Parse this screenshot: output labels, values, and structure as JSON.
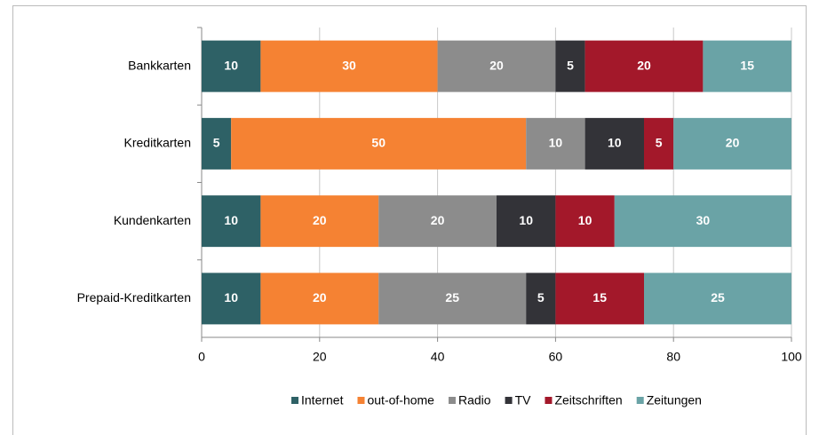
{
  "chart_data": {
    "type": "stacked_barh",
    "categories": [
      "Bankkarten",
      "Kreditkarten",
      "Kundenkarten",
      "Prepaid-Kreditkarten"
    ],
    "series": [
      {
        "name": "Internet",
        "color": "#2e6166",
        "values": [
          10,
          5,
          10,
          10
        ]
      },
      {
        "name": "out-of-home",
        "color": "#f58233",
        "values": [
          30,
          50,
          20,
          20
        ]
      },
      {
        "name": "Radio",
        "color": "#8c8c8c",
        "values": [
          20,
          10,
          20,
          25
        ]
      },
      {
        "name": "TV",
        "color": "#333338",
        "values": [
          5,
          10,
          10,
          5
        ]
      },
      {
        "name": "Zeitschriften",
        "color": "#a3182a",
        "values": [
          20,
          5,
          10,
          15
        ]
      },
      {
        "name": "Zeitungen",
        "color": "#6aa3a6",
        "values": [
          15,
          20,
          30,
          25
        ]
      }
    ],
    "xlim": [
      0,
      100
    ],
    "xticks": [
      0,
      20,
      40,
      60,
      80,
      100
    ],
    "grid": true,
    "legend": "bottom"
  }
}
